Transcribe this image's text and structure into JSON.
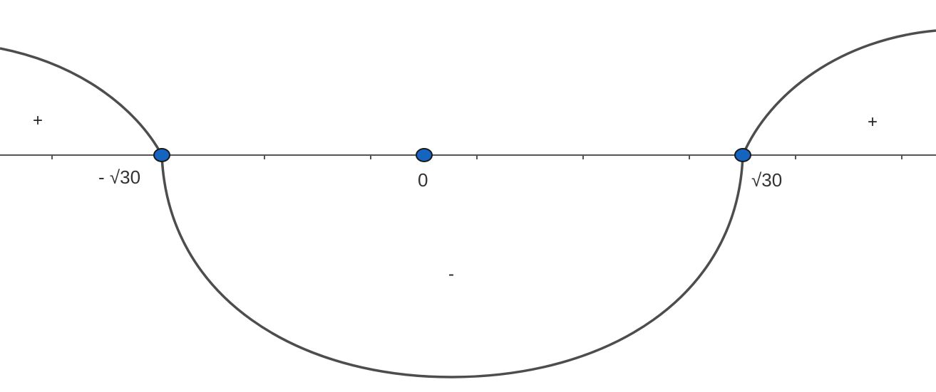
{
  "diagram": {
    "type": "sign-chart",
    "critical_points": [
      {
        "label": "- √30",
        "value": "-√30"
      },
      {
        "label": "0",
        "value": "0"
      },
      {
        "label": "√30",
        "value": "√30"
      }
    ],
    "signs": [
      {
        "interval": "(-∞, -√30)",
        "sign": "+"
      },
      {
        "interval": "(-√30, √30)",
        "sign": "-"
      },
      {
        "interval": "(√30, ∞)",
        "sign": "+"
      }
    ],
    "colors": {
      "curve": "#4d4d4d",
      "axis": "#555555",
      "point_fill": "#1565c0",
      "point_stroke": "#1a1a1a"
    }
  }
}
